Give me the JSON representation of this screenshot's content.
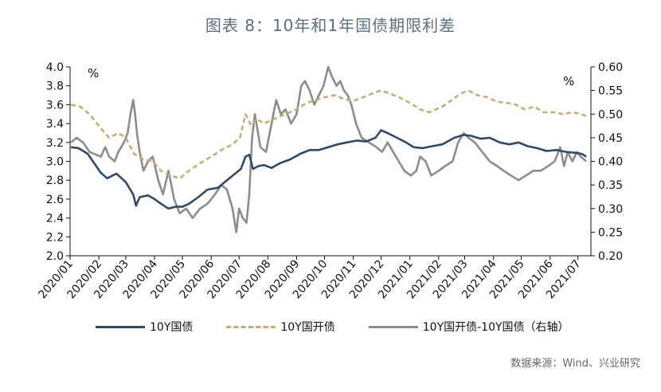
{
  "title": "图表 8：10年和1年国债期限利差",
  "source": "数据来源：Wind、兴业研究",
  "chart_data": {
    "type": "line",
    "left_unit": "%",
    "right_unit": "%",
    "x_ticks": [
      "2020/01",
      "2020/02",
      "2020/03",
      "2020/04",
      "2020/05",
      "2020/06",
      "2020/07",
      "2020/08",
      "2020/09",
      "2020/10",
      "2020/11",
      "2020/12",
      "2021/01",
      "2021/02",
      "2021/03",
      "2021/04",
      "2021/05",
      "2021/06",
      "2021/07"
    ],
    "left_ylim": [
      2.0,
      4.0
    ],
    "left_ticks": [
      "2.0",
      "2.2",
      "2.4",
      "2.6",
      "2.8",
      "3.0",
      "3.2",
      "3.4",
      "3.6",
      "3.8",
      "4.0"
    ],
    "right_ylim": [
      0.2,
      0.6
    ],
    "right_ticks": [
      "0.20",
      "0.25",
      "0.30",
      "0.35",
      "0.40",
      "0.45",
      "0.50",
      "0.55",
      "0.60"
    ],
    "colors": {
      "series1": "#2e4a6b",
      "series2": "#c9ab6f",
      "series3": "#8c8c8c"
    },
    "series": [
      {
        "name": "10Y国债",
        "axis": "left",
        "style": "solid",
        "points": [
          [
            "2020-01-02",
            3.15
          ],
          [
            "2020-01-10",
            3.14
          ],
          [
            "2020-01-20",
            3.08
          ],
          [
            "2020-02-03",
            2.88
          ],
          [
            "2020-02-10",
            2.82
          ],
          [
            "2020-02-20",
            2.87
          ],
          [
            "2020-03-01",
            2.78
          ],
          [
            "2020-03-09",
            2.65
          ],
          [
            "2020-03-12",
            2.53
          ],
          [
            "2020-03-16",
            2.62
          ],
          [
            "2020-03-25",
            2.64
          ],
          [
            "2020-04-01",
            2.6
          ],
          [
            "2020-04-08",
            2.55
          ],
          [
            "2020-04-16",
            2.5
          ],
          [
            "2020-04-24",
            2.52
          ],
          [
            "2020-05-01",
            2.52
          ],
          [
            "2020-05-08",
            2.55
          ],
          [
            "2020-05-18",
            2.62
          ],
          [
            "2020-05-28",
            2.7
          ],
          [
            "2020-06-08",
            2.72
          ],
          [
            "2020-06-18",
            2.8
          ],
          [
            "2020-06-28",
            2.88
          ],
          [
            "2020-07-03",
            2.92
          ],
          [
            "2020-07-08",
            3.05
          ],
          [
            "2020-07-12",
            3.07
          ],
          [
            "2020-07-16",
            2.92
          ],
          [
            "2020-07-22",
            2.95
          ],
          [
            "2020-07-28",
            2.96
          ],
          [
            "2020-08-05",
            2.93
          ],
          [
            "2020-08-14",
            2.98
          ],
          [
            "2020-08-25",
            3.02
          ],
          [
            "2020-09-05",
            3.08
          ],
          [
            "2020-09-15",
            3.12
          ],
          [
            "2020-09-25",
            3.12
          ],
          [
            "2020-10-05",
            3.15
          ],
          [
            "2020-10-15",
            3.18
          ],
          [
            "2020-10-25",
            3.2
          ],
          [
            "2020-11-05",
            3.22
          ],
          [
            "2020-11-15",
            3.21
          ],
          [
            "2020-11-25",
            3.25
          ],
          [
            "2020-12-01",
            3.33
          ],
          [
            "2020-12-08",
            3.3
          ],
          [
            "2020-12-18",
            3.25
          ],
          [
            "2020-12-28",
            3.2
          ],
          [
            "2021-01-05",
            3.15
          ],
          [
            "2021-01-15",
            3.14
          ],
          [
            "2021-01-25",
            3.16
          ],
          [
            "2021-02-05",
            3.18
          ],
          [
            "2021-02-18",
            3.25
          ],
          [
            "2021-02-28",
            3.28
          ],
          [
            "2021-03-08",
            3.27
          ],
          [
            "2021-03-18",
            3.24
          ],
          [
            "2021-03-28",
            3.25
          ],
          [
            "2021-04-08",
            3.2
          ],
          [
            "2021-04-18",
            3.18
          ],
          [
            "2021-04-28",
            3.2
          ],
          [
            "2021-05-08",
            3.16
          ],
          [
            "2021-05-18",
            3.14
          ],
          [
            "2021-05-28",
            3.11
          ],
          [
            "2021-06-08",
            3.12
          ],
          [
            "2021-06-18",
            3.1
          ],
          [
            "2021-06-28",
            3.09
          ],
          [
            "2021-07-05",
            3.08
          ],
          [
            "2021-07-10",
            3.05
          ]
        ]
      },
      {
        "name": "10Y国开债",
        "axis": "left",
        "style": "dashed",
        "points": [
          [
            "2020-01-02",
            3.6
          ],
          [
            "2020-01-12",
            3.58
          ],
          [
            "2020-01-22",
            3.5
          ],
          [
            "2020-02-03",
            3.35
          ],
          [
            "2020-02-12",
            3.25
          ],
          [
            "2020-02-22",
            3.3
          ],
          [
            "2020-03-01",
            3.25
          ],
          [
            "2020-03-10",
            3.08
          ],
          [
            "2020-03-20",
            3.02
          ],
          [
            "2020-03-30",
            3.0
          ],
          [
            "2020-04-08",
            2.9
          ],
          [
            "2020-04-18",
            2.85
          ],
          [
            "2020-04-28",
            2.82
          ],
          [
            "2020-05-08",
            2.9
          ],
          [
            "2020-05-20",
            2.98
          ],
          [
            "2020-06-01",
            3.05
          ],
          [
            "2020-06-12",
            3.12
          ],
          [
            "2020-06-24",
            3.18
          ],
          [
            "2020-07-02",
            3.25
          ],
          [
            "2020-07-08",
            3.5
          ],
          [
            "2020-07-14",
            3.38
          ],
          [
            "2020-07-20",
            3.45
          ],
          [
            "2020-07-28",
            3.4
          ],
          [
            "2020-08-08",
            3.45
          ],
          [
            "2020-08-20",
            3.5
          ],
          [
            "2020-09-01",
            3.55
          ],
          [
            "2020-09-12",
            3.62
          ],
          [
            "2020-09-22",
            3.65
          ],
          [
            "2020-10-02",
            3.68
          ],
          [
            "2020-10-12",
            3.7
          ],
          [
            "2020-10-22",
            3.66
          ],
          [
            "2020-11-01",
            3.64
          ],
          [
            "2020-11-12",
            3.68
          ],
          [
            "2020-11-22",
            3.72
          ],
          [
            "2020-12-01",
            3.75
          ],
          [
            "2020-12-10",
            3.72
          ],
          [
            "2020-12-20",
            3.68
          ],
          [
            "2021-01-01",
            3.62
          ],
          [
            "2021-01-12",
            3.55
          ],
          [
            "2021-01-22",
            3.52
          ],
          [
            "2021-02-05",
            3.58
          ],
          [
            "2021-02-15",
            3.65
          ],
          [
            "2021-02-25",
            3.72
          ],
          [
            "2021-03-05",
            3.75
          ],
          [
            "2021-03-15",
            3.7
          ],
          [
            "2021-03-25",
            3.68
          ],
          [
            "2021-04-05",
            3.63
          ],
          [
            "2021-04-15",
            3.62
          ],
          [
            "2021-04-25",
            3.6
          ],
          [
            "2021-05-05",
            3.55
          ],
          [
            "2021-05-15",
            3.58
          ],
          [
            "2021-05-25",
            3.52
          ],
          [
            "2021-06-05",
            3.52
          ],
          [
            "2021-06-15",
            3.5
          ],
          [
            "2021-06-25",
            3.52
          ],
          [
            "2021-07-05",
            3.5
          ],
          [
            "2021-07-10",
            3.48
          ]
        ]
      },
      {
        "name": "10Y国开债-10Y国债（右轴）",
        "axis": "right",
        "style": "solid",
        "points": [
          [
            "2020-01-02",
            0.44
          ],
          [
            "2020-01-08",
            0.45
          ],
          [
            "2020-01-15",
            0.44
          ],
          [
            "2020-01-22",
            0.42
          ],
          [
            "2020-02-03",
            0.41
          ],
          [
            "2020-02-08",
            0.43
          ],
          [
            "2020-02-12",
            0.41
          ],
          [
            "2020-02-18",
            0.4
          ],
          [
            "2020-02-22",
            0.42
          ],
          [
            "2020-02-28",
            0.44
          ],
          [
            "2020-03-03",
            0.46
          ],
          [
            "2020-03-06",
            0.5
          ],
          [
            "2020-03-09",
            0.53
          ],
          [
            "2020-03-11",
            0.5
          ],
          [
            "2020-03-13",
            0.46
          ],
          [
            "2020-03-16",
            0.42
          ],
          [
            "2020-03-20",
            0.38
          ],
          [
            "2020-03-25",
            0.4
          ],
          [
            "2020-03-30",
            0.41
          ],
          [
            "2020-04-05",
            0.36
          ],
          [
            "2020-04-10",
            0.33
          ],
          [
            "2020-04-16",
            0.38
          ],
          [
            "2020-04-22",
            0.32
          ],
          [
            "2020-04-28",
            0.29
          ],
          [
            "2020-05-05",
            0.3
          ],
          [
            "2020-05-12",
            0.28
          ],
          [
            "2020-05-20",
            0.3
          ],
          [
            "2020-05-28",
            0.31
          ],
          [
            "2020-06-05",
            0.33
          ],
          [
            "2020-06-12",
            0.35
          ],
          [
            "2020-06-18",
            0.34
          ],
          [
            "2020-06-24",
            0.3
          ],
          [
            "2020-06-28",
            0.25
          ],
          [
            "2020-07-01",
            0.3
          ],
          [
            "2020-07-05",
            0.28
          ],
          [
            "2020-07-09",
            0.27
          ],
          [
            "2020-07-12",
            0.33
          ],
          [
            "2020-07-15",
            0.45
          ],
          [
            "2020-07-18",
            0.5
          ],
          [
            "2020-07-24",
            0.43
          ],
          [
            "2020-07-30",
            0.42
          ],
          [
            "2020-08-05",
            0.48
          ],
          [
            "2020-08-10",
            0.53
          ],
          [
            "2020-08-15",
            0.5
          ],
          [
            "2020-08-20",
            0.51
          ],
          [
            "2020-08-26",
            0.48
          ],
          [
            "2020-09-01",
            0.5
          ],
          [
            "2020-09-06",
            0.56
          ],
          [
            "2020-09-10",
            0.57
          ],
          [
            "2020-09-15",
            0.55
          ],
          [
            "2020-09-20",
            0.52
          ],
          [
            "2020-09-25",
            0.54
          ],
          [
            "2020-09-30",
            0.56
          ],
          [
            "2020-10-05",
            0.6
          ],
          [
            "2020-10-09",
            0.58
          ],
          [
            "2020-10-14",
            0.56
          ],
          [
            "2020-10-18",
            0.57
          ],
          [
            "2020-10-22",
            0.55
          ],
          [
            "2020-10-26",
            0.54
          ],
          [
            "2020-10-30",
            0.52
          ],
          [
            "2020-11-04",
            0.48
          ],
          [
            "2020-11-10",
            0.45
          ],
          [
            "2020-11-18",
            0.44
          ],
          [
            "2020-11-26",
            0.43
          ],
          [
            "2020-12-02",
            0.42
          ],
          [
            "2020-12-08",
            0.44
          ],
          [
            "2020-12-14",
            0.42
          ],
          [
            "2020-12-20",
            0.4
          ],
          [
            "2020-12-26",
            0.38
          ],
          [
            "2021-01-02",
            0.37
          ],
          [
            "2021-01-08",
            0.38
          ],
          [
            "2021-01-12",
            0.41
          ],
          [
            "2021-01-18",
            0.4
          ],
          [
            "2021-01-24",
            0.37
          ],
          [
            "2021-02-01",
            0.38
          ],
          [
            "2021-02-08",
            0.39
          ],
          [
            "2021-02-16",
            0.4
          ],
          [
            "2021-02-22",
            0.44
          ],
          [
            "2021-02-28",
            0.46
          ],
          [
            "2021-03-05",
            0.45
          ],
          [
            "2021-03-12",
            0.44
          ],
          [
            "2021-03-20",
            0.42
          ],
          [
            "2021-03-28",
            0.4
          ],
          [
            "2021-04-05",
            0.39
          ],
          [
            "2021-04-12",
            0.38
          ],
          [
            "2021-04-20",
            0.37
          ],
          [
            "2021-04-28",
            0.36
          ],
          [
            "2021-05-06",
            0.37
          ],
          [
            "2021-05-14",
            0.38
          ],
          [
            "2021-05-22",
            0.38
          ],
          [
            "2021-05-30",
            0.39
          ],
          [
            "2021-06-06",
            0.4
          ],
          [
            "2021-06-12",
            0.43
          ],
          [
            "2021-06-16",
            0.39
          ],
          [
            "2021-06-20",
            0.42
          ],
          [
            "2021-06-25",
            0.4
          ],
          [
            "2021-06-30",
            0.42
          ],
          [
            "2021-07-04",
            0.41
          ],
          [
            "2021-07-10",
            0.4
          ]
        ]
      }
    ],
    "legend": {
      "position": "bottom",
      "items": [
        {
          "label": "10Y国债"
        },
        {
          "label": "10Y国开债"
        },
        {
          "label": "10Y国开债-10Y国债（右轴）"
        }
      ]
    }
  }
}
